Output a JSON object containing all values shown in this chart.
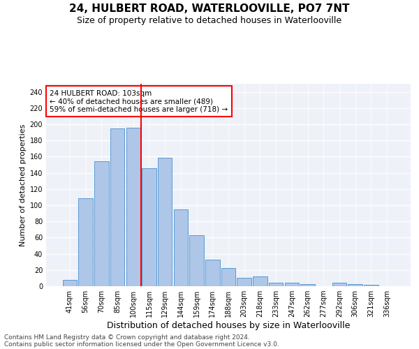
{
  "title": "24, HULBERT ROAD, WATERLOOVILLE, PO7 7NT",
  "subtitle": "Size of property relative to detached houses in Waterlooville",
  "xlabel": "Distribution of detached houses by size in Waterlooville",
  "ylabel": "Number of detached properties",
  "bar_labels": [
    "41sqm",
    "56sqm",
    "70sqm",
    "85sqm",
    "100sqm",
    "115sqm",
    "129sqm",
    "144sqm",
    "159sqm",
    "174sqm",
    "188sqm",
    "203sqm",
    "218sqm",
    "233sqm",
    "247sqm",
    "262sqm",
    "277sqm",
    "292sqm",
    "306sqm",
    "321sqm",
    "336sqm"
  ],
  "bar_values": [
    8,
    109,
    154,
    195,
    196,
    146,
    159,
    95,
    63,
    33,
    22,
    10,
    12,
    4,
    4,
    3,
    0,
    4,
    3,
    2,
    0
  ],
  "bar_color": "#aec6e8",
  "bar_edge_color": "#5b9bd5",
  "vline_x": 4.5,
  "vline_color": "red",
  "annotation_line1": "24 HULBERT ROAD: 103sqm",
  "annotation_line2": "← 40% of detached houses are smaller (489)",
  "annotation_line3": "59% of semi-detached houses are larger (718) →",
  "ylim": [
    0,
    250
  ],
  "yticks": [
    0,
    20,
    40,
    60,
    80,
    100,
    120,
    140,
    160,
    180,
    200,
    220,
    240
  ],
  "footer1": "Contains HM Land Registry data © Crown copyright and database right 2024.",
  "footer2": "Contains public sector information licensed under the Open Government Licence v3.0.",
  "bg_color": "#eef2f8",
  "title_fontsize": 11,
  "subtitle_fontsize": 9,
  "annotation_fontsize": 7.5,
  "xlabel_fontsize": 9,
  "ylabel_fontsize": 8,
  "tick_fontsize": 7,
  "footer_fontsize": 6.5
}
